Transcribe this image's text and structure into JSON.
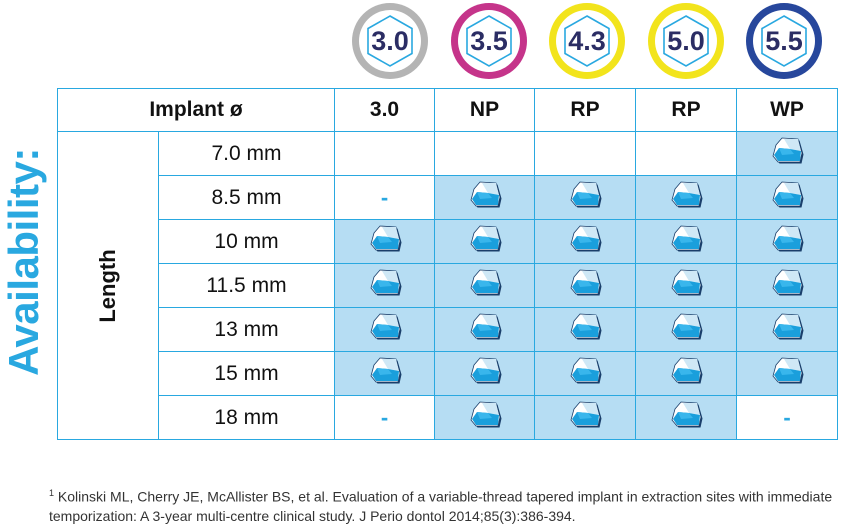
{
  "title": "Availability:",
  "badges": [
    {
      "label": "3.0",
      "color": "#b4b4b4"
    },
    {
      "label": "3.5",
      "color": "#c5348a"
    },
    {
      "label": "4.3",
      "color": "#f2e41c"
    },
    {
      "label": "5.0",
      "color": "#f2e41c"
    },
    {
      "label": "5.5",
      "color": "#27479c"
    }
  ],
  "table": {
    "header_label": "Implant ø",
    "columns": [
      "3.0",
      "NP",
      "RP",
      "RP",
      "WP"
    ],
    "length_label": "Length",
    "rows": [
      {
        "size": "7.0 mm",
        "cells": [
          "",
          "",
          "",
          "",
          "icon"
        ]
      },
      {
        "size": "8.5 mm",
        "cells": [
          "-",
          "icon",
          "icon",
          "icon",
          "icon"
        ]
      },
      {
        "size": "10 mm",
        "cells": [
          "icon",
          "icon",
          "icon",
          "icon",
          "icon"
        ]
      },
      {
        "size": "11.5 mm",
        "cells": [
          "icon",
          "icon",
          "icon",
          "icon",
          "icon"
        ]
      },
      {
        "size": "13 mm",
        "cells": [
          "icon",
          "icon",
          "icon",
          "icon",
          "icon"
        ]
      },
      {
        "size": "15 mm",
        "cells": [
          "icon",
          "icon",
          "icon",
          "icon",
          "icon"
        ]
      },
      {
        "size": "18 mm",
        "cells": [
          "-",
          "icon",
          "icon",
          "icon",
          "-"
        ]
      }
    ]
  },
  "footnote": {
    "marker": "1",
    "text": " Kolinski ML, Cherry JE, McAllister BS, et al. Evaluation of a variable-thread tapered implant in extraction sites with immediate temporization: A 3-year multi-centre clinical study. J Perio dontol 2014;85(3):386-394."
  },
  "icon_name": "implant-cap-icon"
}
